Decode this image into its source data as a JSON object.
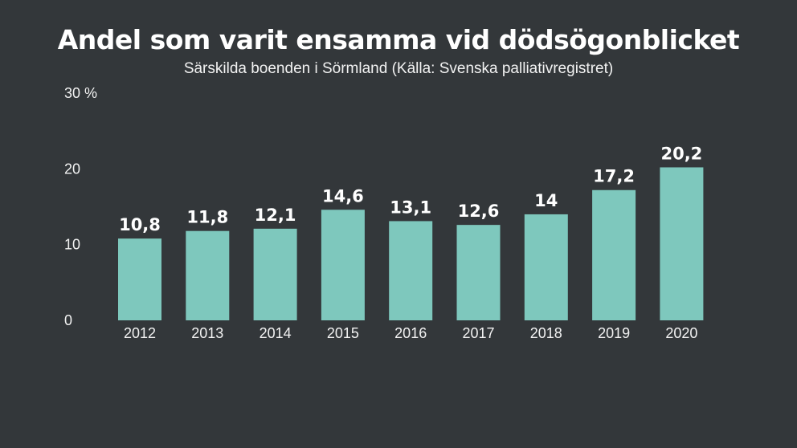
{
  "chart_data": {
    "type": "bar",
    "title": "Andel som varit ensamma vid dödsögonblicket",
    "subtitle": "Särskilda boenden i Sörmland (Källa: Svenska palliativregistret)",
    "categories": [
      "2012",
      "2013",
      "2014",
      "2015",
      "2016",
      "2017",
      "2018",
      "2019",
      "2020"
    ],
    "values": [
      10.8,
      11.8,
      12.1,
      14.6,
      13.1,
      12.6,
      14,
      17.2,
      20.2
    ],
    "value_labels": [
      "10,8",
      "11,8",
      "12,1",
      "14,6",
      "13,1",
      "12,6",
      "14",
      "17,2",
      "20,2"
    ],
    "yticks": [
      0,
      10,
      20,
      30
    ],
    "ytick_labels": [
      "0",
      "10",
      "20",
      "30 %"
    ],
    "ylim": [
      0,
      30
    ],
    "grid": false,
    "legend": "none",
    "colors": {
      "background": "#33373a",
      "bar": "#7ec8bd",
      "text": "#ffffff"
    }
  }
}
